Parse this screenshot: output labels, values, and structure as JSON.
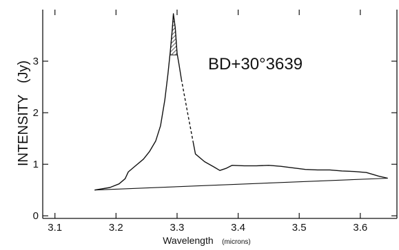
{
  "chart_data": {
    "type": "line",
    "title": "BD+30°3639",
    "xlabel": "Wavelength",
    "xunit": "(microns)",
    "ylabel": "INTENSITY   (Jy)",
    "xlim": [
      3.08,
      3.66
    ],
    "ylim": [
      -0.05,
      4.0
    ],
    "x_ticks": [
      "3.1",
      "3.2",
      "3.3",
      "3.4",
      "3.5",
      "3.6"
    ],
    "y_ticks": [
      "0",
      "1",
      "2",
      "3"
    ],
    "series": [
      {
        "style": "solid",
        "points": [
          [
            3.165,
            0.5
          ],
          [
            3.19,
            0.55
          ],
          [
            3.205,
            0.62
          ],
          [
            3.215,
            0.72
          ],
          [
            3.22,
            0.85
          ],
          [
            3.23,
            0.95
          ],
          [
            3.245,
            1.1
          ],
          [
            3.255,
            1.25
          ],
          [
            3.265,
            1.45
          ],
          [
            3.273,
            1.75
          ],
          [
            3.28,
            2.25
          ],
          [
            3.285,
            2.75
          ],
          [
            3.289,
            3.2
          ],
          [
            3.292,
            3.6
          ],
          [
            3.294,
            3.92
          ],
          [
            3.297,
            3.65
          ],
          [
            3.3,
            3.15
          ],
          [
            3.303,
            2.95
          ],
          [
            3.307,
            2.65
          ]
        ]
      },
      {
        "style": "dashed",
        "points": [
          [
            3.307,
            2.65
          ],
          [
            3.318,
            1.95
          ],
          [
            3.326,
            1.45
          ]
        ]
      },
      {
        "style": "solid",
        "points": [
          [
            3.326,
            1.45
          ],
          [
            3.33,
            1.2
          ],
          [
            3.345,
            1.05
          ],
          [
            3.36,
            0.95
          ],
          [
            3.37,
            0.88
          ],
          [
            3.38,
            0.92
          ],
          [
            3.39,
            0.98
          ],
          [
            3.41,
            0.97
          ],
          [
            3.43,
            0.97
          ],
          [
            3.45,
            0.98
          ],
          [
            3.47,
            0.96
          ],
          [
            3.49,
            0.93
          ],
          [
            3.51,
            0.9
          ],
          [
            3.53,
            0.89
          ],
          [
            3.55,
            0.89
          ],
          [
            3.57,
            0.87
          ],
          [
            3.59,
            0.86
          ],
          [
            3.61,
            0.84
          ],
          [
            3.63,
            0.77
          ],
          [
            3.645,
            0.73
          ]
        ]
      },
      {
        "style": "baseline",
        "points": [
          [
            3.165,
            0.5
          ],
          [
            3.645,
            0.73
          ]
        ]
      }
    ],
    "shaded_region": {
      "pattern": "hatched",
      "x_range": [
        3.289,
        3.3
      ],
      "y_min": 3.12
    }
  }
}
